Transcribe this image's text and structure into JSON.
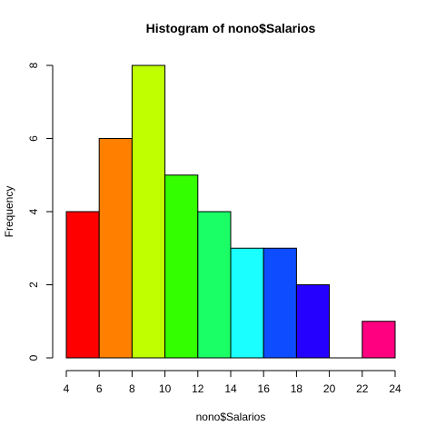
{
  "chart_data": {
    "type": "bar",
    "title": "Histogram of nono$Salarios",
    "xlabel": "nono$Salarios",
    "ylabel": "Frequency",
    "bins": [
      {
        "from": 4,
        "to": 6,
        "count": 4,
        "color": "#FF0000"
      },
      {
        "from": 6,
        "to": 8,
        "count": 6,
        "color": "#FF8000"
      },
      {
        "from": 8,
        "to": 10,
        "count": 8,
        "color": "#BFFF00"
      },
      {
        "from": 10,
        "to": 12,
        "count": 5,
        "color": "#33FF00"
      },
      {
        "from": 12,
        "to": 14,
        "count": 4,
        "color": "#1AFF66"
      },
      {
        "from": 14,
        "to": 16,
        "count": 3,
        "color": "#1AFFFF"
      },
      {
        "from": 16,
        "to": 18,
        "count": 3,
        "color": "#0D4DFF"
      },
      {
        "from": 18,
        "to": 20,
        "count": 2,
        "color": "#2600FF"
      },
      {
        "from": 20,
        "to": 22,
        "count": 0,
        "color": "#A600FF"
      },
      {
        "from": 22,
        "to": 24,
        "count": 1,
        "color": "#FF0080"
      }
    ],
    "xlim": [
      4,
      24
    ],
    "ylim": [
      0,
      8
    ],
    "x_ticks": [
      "4",
      "6",
      "8",
      "10",
      "12",
      "14",
      "16",
      "18",
      "20",
      "22",
      "24"
    ],
    "y_ticks": [
      "0",
      "2",
      "4",
      "6",
      "8"
    ],
    "grid": false
  }
}
